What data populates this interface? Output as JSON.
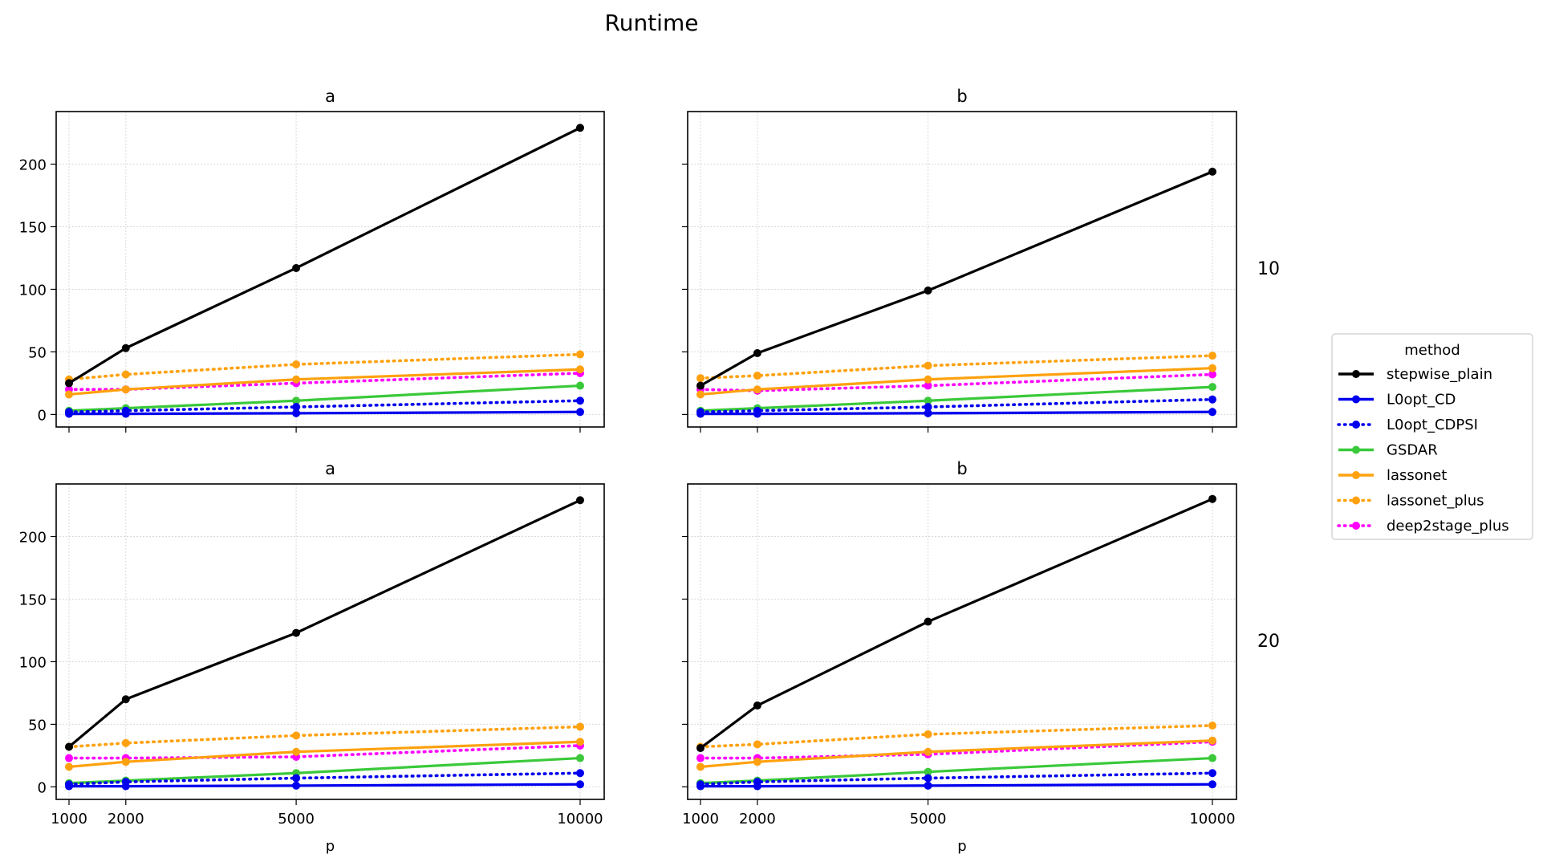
{
  "title": "Runtime",
  "x_axis_label": "p",
  "legend": {
    "title": "method",
    "entries": [
      {
        "name": "stepwise_plain",
        "color": "#000000",
        "style": "solid"
      },
      {
        "name": "L0opt_CD",
        "color": "#0000ee",
        "style": "solid"
      },
      {
        "name": "L0opt_CDPSI",
        "color": "#0000ee",
        "style": "dotted"
      },
      {
        "name": "GSDAR",
        "color": "#3ac93a",
        "style": "solid"
      },
      {
        "name": "lassonet",
        "color": "#ffa10e",
        "style": "solid"
      },
      {
        "name": "lassonet_plus",
        "color": "#ffa10e",
        "style": "dotted"
      },
      {
        "name": "deep2stage_plus",
        "color": "#ff00ff",
        "style": "dotted"
      }
    ]
  },
  "row_labels": [
    "10",
    "20"
  ],
  "chart_data": [
    {
      "type": "line",
      "panel": "top-left",
      "title": "a",
      "row_label": "10",
      "x": [
        1000,
        2000,
        5000,
        10000
      ],
      "xlim": [
        0,
        10500
      ],
      "ylim": [
        -10,
        242
      ],
      "yticks": [
        0,
        50,
        100,
        150,
        200
      ],
      "xticks": [
        1000,
        2000,
        5000,
        10000
      ],
      "grid": true,
      "show_yticks": true,
      "show_xticks": false,
      "series": [
        {
          "name": "stepwise_plain",
          "values": [
            25,
            53,
            117,
            229
          ]
        },
        {
          "name": "L0opt_CD",
          "values": [
            0.5,
            0.5,
            1,
            2
          ]
        },
        {
          "name": "L0opt_CDPSI",
          "values": [
            2,
            3,
            6,
            11
          ]
        },
        {
          "name": "GSDAR",
          "values": [
            3,
            5,
            11,
            23
          ]
        },
        {
          "name": "lassonet",
          "values": [
            16,
            20,
            28,
            36
          ]
        },
        {
          "name": "lassonet_plus",
          "values": [
            28,
            32,
            40,
            48
          ]
        },
        {
          "name": "deep2stage_plus",
          "values": [
            20,
            20,
            25,
            33
          ]
        }
      ]
    },
    {
      "type": "line",
      "panel": "top-right",
      "title": "b",
      "row_label": "10",
      "x": [
        1000,
        2000,
        5000,
        10000
      ],
      "xlim": [
        0,
        10500
      ],
      "ylim": [
        -10,
        242
      ],
      "yticks": [
        0,
        50,
        100,
        150,
        200
      ],
      "xticks": [
        1000,
        2000,
        5000,
        10000
      ],
      "grid": true,
      "show_yticks": false,
      "show_xticks": false,
      "series": [
        {
          "name": "stepwise_plain",
          "values": [
            23,
            49,
            99,
            194
          ]
        },
        {
          "name": "L0opt_CD",
          "values": [
            0.5,
            0.5,
            1,
            2
          ]
        },
        {
          "name": "L0opt_CDPSI",
          "values": [
            2,
            3,
            6,
            12
          ]
        },
        {
          "name": "GSDAR",
          "values": [
            3,
            5,
            11,
            22
          ]
        },
        {
          "name": "lassonet",
          "values": [
            16,
            20,
            28,
            37
          ]
        },
        {
          "name": "lassonet_plus",
          "values": [
            29,
            31,
            39,
            47
          ]
        },
        {
          "name": "deep2stage_plus",
          "values": [
            20,
            19,
            23,
            32
          ]
        }
      ]
    },
    {
      "type": "line",
      "panel": "bottom-left",
      "title": "a",
      "row_label": "20",
      "x": [
        1000,
        2000,
        5000,
        10000
      ],
      "xlim": [
        0,
        10500
      ],
      "ylim": [
        -10,
        242
      ],
      "yticks": [
        0,
        50,
        100,
        150,
        200
      ],
      "xticks": [
        1000,
        2000,
        5000,
        10000
      ],
      "grid": true,
      "show_yticks": true,
      "show_xticks": true,
      "series": [
        {
          "name": "stepwise_plain",
          "values": [
            32,
            70,
            123,
            229
          ]
        },
        {
          "name": "L0opt_CD",
          "values": [
            0.5,
            0.5,
            1,
            2
          ]
        },
        {
          "name": "L0opt_CDPSI",
          "values": [
            2,
            4,
            7,
            11
          ]
        },
        {
          "name": "GSDAR",
          "values": [
            3,
            5,
            11,
            23
          ]
        },
        {
          "name": "lassonet",
          "values": [
            16,
            20,
            28,
            36
          ]
        },
        {
          "name": "lassonet_plus",
          "values": [
            32,
            35,
            41,
            48
          ]
        },
        {
          "name": "deep2stage_plus",
          "values": [
            23,
            23,
            24,
            33
          ]
        }
      ]
    },
    {
      "type": "line",
      "panel": "bottom-right",
      "title": "b",
      "row_label": "20",
      "x": [
        1000,
        2000,
        5000,
        10000
      ],
      "xlim": [
        0,
        10500
      ],
      "ylim": [
        -10,
        242
      ],
      "yticks": [
        0,
        50,
        100,
        150,
        200
      ],
      "xticks": [
        1000,
        2000,
        5000,
        10000
      ],
      "grid": true,
      "show_yticks": false,
      "show_xticks": true,
      "series": [
        {
          "name": "stepwise_plain",
          "values": [
            31,
            65,
            132,
            230
          ]
        },
        {
          "name": "L0opt_CD",
          "values": [
            0.5,
            0.5,
            1,
            2
          ]
        },
        {
          "name": "L0opt_CDPSI",
          "values": [
            2,
            4,
            7,
            11
          ]
        },
        {
          "name": "GSDAR",
          "values": [
            3,
            5,
            12,
            23
          ]
        },
        {
          "name": "lassonet",
          "values": [
            16,
            20,
            28,
            37
          ]
        },
        {
          "name": "lassonet_plus",
          "values": [
            32,
            34,
            42,
            49
          ]
        },
        {
          "name": "deep2stage_plus",
          "values": [
            23,
            23,
            26,
            36
          ]
        }
      ]
    }
  ]
}
